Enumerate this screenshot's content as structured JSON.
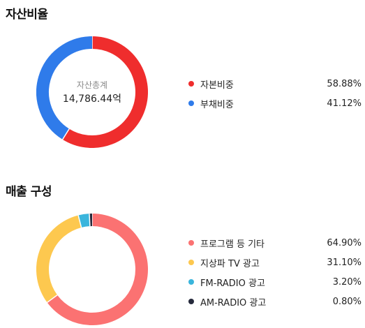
{
  "chart_data": [
    {
      "type": "pie",
      "title": "자산비율",
      "center_label": "자산총계",
      "center_value": "14,786.44억",
      "legend_placement": "right",
      "slices": [
        {
          "name": "자본비중",
          "value": 58.88,
          "value_label": "58.88%",
          "color": "#ef2d2d"
        },
        {
          "name": "부채비중",
          "value": 41.12,
          "value_label": "41.12%",
          "color": "#2f7bea"
        }
      ]
    },
    {
      "type": "pie",
      "title": "매출 구성",
      "legend_placement": "right",
      "slices": [
        {
          "name": "프로그램 등 기타",
          "value": 64.9,
          "value_label": "64.90%",
          "color": "#fb7272"
        },
        {
          "name": "지상파 TV 광고",
          "value": 31.1,
          "value_label": "31.10%",
          "color": "#fdc84f"
        },
        {
          "name": "FM-RADIO 광고",
          "value": 3.2,
          "value_label": "3.20%",
          "color": "#3ab5dc"
        },
        {
          "name": "AM-RADIO 광고",
          "value": 0.8,
          "value_label": "0.80%",
          "color": "#262a3c"
        }
      ]
    }
  ]
}
